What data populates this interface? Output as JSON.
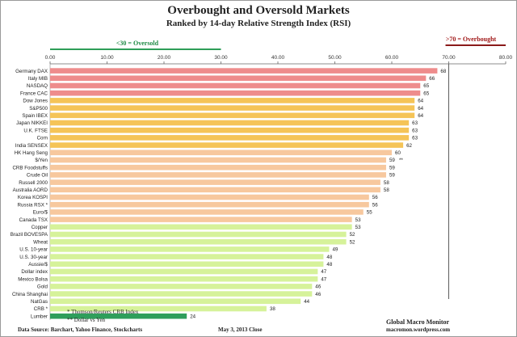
{
  "title": "Overbought and Oversold Markets",
  "subtitle": "Ranked by 14-day Relative Strength Index (RSI)",
  "oversold_label": "<30 = Oversold",
  "overbought_label": ">70 = Overbought",
  "colors": {
    "overbought_line": "#8b1a1a",
    "oversold_line": "#2e9e58",
    "oversold_text": "#1e8a44",
    "overbought_text": "#a01818",
    "bar_red": "#ee8c8c",
    "bar_orange": "#f5c457",
    "bar_peach": "#f7c89e",
    "bar_lime": "#d6f29a",
    "bar_green": "#2e9e5b"
  },
  "chart_data": {
    "type": "bar",
    "orientation": "horizontal",
    "title": "Overbought and Oversold Markets",
    "subtitle": "Ranked by 14-day Relative Strength Index (RSI)",
    "xlim": [
      0,
      80
    ],
    "ticks": [
      "0.00",
      "10.00",
      "20.00",
      "30.00",
      "40.00",
      "50.00",
      "60.00",
      "70.00",
      "80.00"
    ],
    "grid": false,
    "oversold_threshold": 30,
    "overbought_threshold": 70,
    "categories": [
      "Germany DAX",
      "Italy MIB",
      "NASDAQ",
      "France CAC",
      "Dow Jones",
      "S&P500",
      "Spain IBEX",
      "Japan NIKKEI",
      "U.K. FTSE",
      "Corn",
      "India SENSEX",
      "HK Hang Seng",
      "$/Yen",
      "CRB Foodstuffs",
      "Crude Oil",
      "Russell 2000",
      "Australia AORD",
      "Korea KOSPI",
      "Russia RSX *",
      "Euro/$",
      "Canada TSX",
      "Copper",
      "Brazil BOVESPA",
      "Wheat",
      "U.S. 10-year",
      "U.S. 30-year",
      "Aussie/$",
      "Dollar index",
      "Mexico Bolsa",
      "Gold",
      "China Shanghai",
      "NatGas",
      "CRB *",
      "Lumber"
    ],
    "labels": [
      "68",
      "66",
      "65",
      "65",
      "64",
      "64",
      "64",
      "63",
      "63",
      "63",
      "62",
      "60",
      "59",
      "59",
      "59",
      "58",
      "58",
      "56",
      "56",
      "55",
      "53",
      "53",
      "52",
      "52",
      "49",
      "48",
      "48",
      "47",
      "47",
      "46",
      "46",
      "44",
      "38",
      "24"
    ],
    "values": [
      68,
      66,
      65,
      65,
      64,
      64,
      64,
      63,
      63,
      63,
      62,
      60,
      59,
      59,
      59,
      58,
      58,
      56,
      56,
      55,
      53,
      53,
      52,
      52,
      49,
      48,
      48,
      47,
      47,
      46,
      46,
      44,
      38,
      24
    ],
    "color_groups": [
      "red",
      "red",
      "red",
      "red",
      "orange",
      "orange",
      "orange",
      "orange",
      "orange",
      "orange",
      "orange",
      "peach",
      "peach",
      "peach",
      "peach",
      "peach",
      "peach",
      "peach",
      "peach",
      "peach",
      "peach",
      "lime",
      "lime",
      "lime",
      "lime",
      "lime",
      "lime",
      "lime",
      "lime",
      "lime",
      "lime",
      "lime",
      "lime",
      "green"
    ],
    "annotations": [
      {
        "category": "$/Yen",
        "text": "**"
      }
    ]
  },
  "footer": {
    "note1": "* Thomson/Reuters CRB Index",
    "note2": "** Dollar vs Yen",
    "sources": "Data Source:  Barchart,  Yahoo Finance, Stockcharts",
    "date": "May 3, 2013  Close",
    "brand": "Global Macro Monitor",
    "site": "macromon.wordpress.com"
  }
}
